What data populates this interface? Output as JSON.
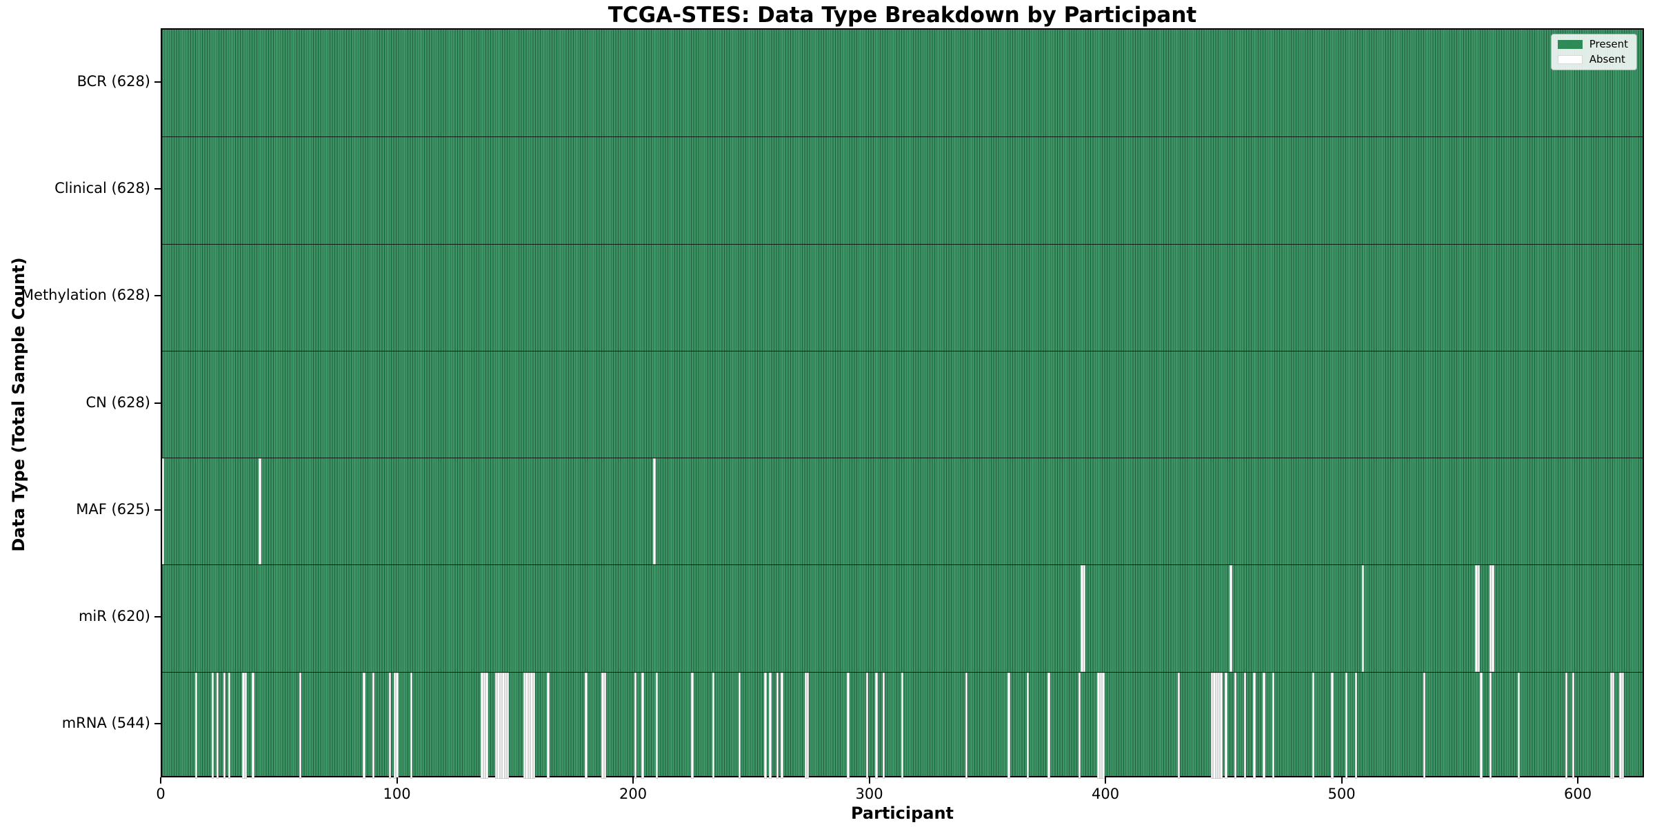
{
  "chart_data": {
    "type": "heatmap",
    "title": "TCGA-STES: Data Type Breakdown by Participant",
    "xlabel": "Participant",
    "ylabel": "Data Type (Total Sample Count)",
    "x_ticks": [
      0,
      100,
      200,
      300,
      400,
      500,
      600
    ],
    "x_range": [
      0,
      628
    ],
    "n_participants": 628,
    "grid": false,
    "legend_position": "upper right",
    "legend": [
      {
        "label": "Present",
        "color": "#2E8B57"
      },
      {
        "label": "Absent",
        "color": "#FFFFFF"
      }
    ],
    "colors": {
      "present_fill": "#2E8B57",
      "absent_fill": "#FFFFFF",
      "bar_edge": "#000000",
      "background": "#FFFFFF"
    },
    "rows": [
      {
        "name": "BCR",
        "label": "BCR (628)",
        "total": 628,
        "absent": []
      },
      {
        "name": "Clinical",
        "label": "Clinical (628)",
        "total": 628,
        "absent": []
      },
      {
        "name": "Methylation",
        "label": "Methylation (628)",
        "total": 628,
        "absent": []
      },
      {
        "name": "CN",
        "label": "CN (628)",
        "total": 628,
        "absent": []
      },
      {
        "name": "MAF",
        "label": "MAF (625)",
        "total": 625,
        "absent": [
          0,
          41,
          208
        ]
      },
      {
        "name": "miR",
        "label": "miR (620)",
        "total": 620,
        "absent": [
          389,
          390,
          452,
          508,
          556,
          557,
          562,
          563
        ]
      },
      {
        "name": "mRNA",
        "label": "mRNA (544)",
        "total": 544,
        "absent": [
          14,
          21,
          23,
          26,
          28,
          34,
          35,
          38,
          58,
          85,
          89,
          96,
          98,
          99,
          105,
          135,
          136,
          137,
          141,
          142,
          143,
          144,
          145,
          146,
          153,
          154,
          155,
          156,
          157,
          163,
          179,
          186,
          187,
          200,
          203,
          209,
          224,
          233,
          244,
          255,
          257,
          260,
          262,
          272,
          273,
          290,
          298,
          302,
          305,
          313,
          340,
          358,
          366,
          375,
          388,
          396,
          397,
          398,
          430,
          444,
          445,
          446,
          447,
          448,
          450,
          454,
          458,
          462,
          466,
          470,
          487,
          495,
          501,
          505,
          534,
          558,
          562,
          574,
          594,
          597,
          613,
          614,
          617,
          618
        ]
      }
    ]
  }
}
